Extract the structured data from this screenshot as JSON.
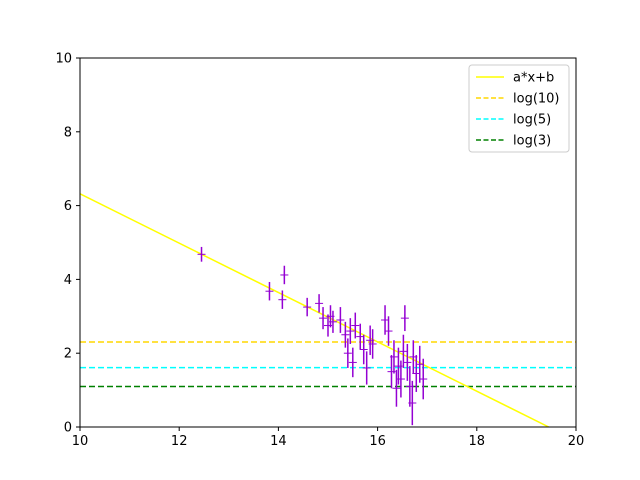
{
  "chart_data": {
    "type": "scatter",
    "xlim": [
      10,
      20
    ],
    "ylim": [
      0,
      10
    ],
    "x_ticks": [
      "10",
      "12",
      "14",
      "16",
      "18",
      "20"
    ],
    "y_ticks": [
      "0",
      "2",
      "4",
      "6",
      "8",
      "10"
    ],
    "grid": false,
    "legend_position": "top-right",
    "fit_line": {
      "name": "a*x+b",
      "color": "#ffff00",
      "points": [
        [
          10,
          6.32
        ],
        [
          19.45,
          0.0
        ]
      ]
    },
    "reference_lines": [
      {
        "name": "log(10)",
        "y": 2.3026,
        "color": "#ffd700",
        "style": "dashed"
      },
      {
        "name": "log(5)",
        "y": 1.6094,
        "color": "#00ffff",
        "style": "dashed"
      },
      {
        "name": "log(3)",
        "y": 1.0986,
        "color": "#008000",
        "style": "dashed"
      }
    ],
    "series": [
      {
        "color": "#9400d3",
        "marker": "+",
        "points": [
          {
            "x": 12.45,
            "y": 4.68,
            "yerr": 0.2
          },
          {
            "x": 13.82,
            "y": 3.68,
            "yerr": 0.25
          },
          {
            "x": 14.08,
            "y": 3.45,
            "yerr": 0.25
          },
          {
            "x": 14.12,
            "y": 4.12,
            "yerr": 0.25
          },
          {
            "x": 14.58,
            "y": 3.25,
            "yerr": 0.25
          },
          {
            "x": 14.82,
            "y": 3.35,
            "yerr": 0.25
          },
          {
            "x": 14.9,
            "y": 2.95,
            "yerr": 0.3
          },
          {
            "x": 15.0,
            "y": 2.75,
            "yerr": 0.3
          },
          {
            "x": 15.05,
            "y": 3.0,
            "yerr": 0.3
          },
          {
            "x": 15.1,
            "y": 2.85,
            "yerr": 0.3
          },
          {
            "x": 15.25,
            "y": 2.9,
            "yerr": 0.35
          },
          {
            "x": 15.35,
            "y": 2.5,
            "yerr": 0.35
          },
          {
            "x": 15.4,
            "y": 2.0,
            "yerr": 0.4
          },
          {
            "x": 15.45,
            "y": 2.6,
            "yerr": 0.35
          },
          {
            "x": 15.5,
            "y": 1.75,
            "yerr": 0.4
          },
          {
            "x": 15.55,
            "y": 2.75,
            "yerr": 0.35
          },
          {
            "x": 15.65,
            "y": 2.45,
            "yerr": 0.35
          },
          {
            "x": 15.72,
            "y": 2.1,
            "yerr": 0.4
          },
          {
            "x": 15.78,
            "y": 1.6,
            "yerr": 0.45
          },
          {
            "x": 15.85,
            "y": 2.35,
            "yerr": 0.4
          },
          {
            "x": 15.9,
            "y": 2.25,
            "yerr": 0.4
          },
          {
            "x": 16.15,
            "y": 2.9,
            "yerr": 0.4
          },
          {
            "x": 16.22,
            "y": 2.6,
            "yerr": 0.4
          },
          {
            "x": 16.28,
            "y": 1.5,
            "yerr": 0.45
          },
          {
            "x": 16.33,
            "y": 1.9,
            "yerr": 0.45
          },
          {
            "x": 16.38,
            "y": 1.05,
            "yerr": 0.5
          },
          {
            "x": 16.42,
            "y": 1.65,
            "yerr": 0.5
          },
          {
            "x": 16.47,
            "y": 1.3,
            "yerr": 0.5
          },
          {
            "x": 16.52,
            "y": 2.05,
            "yerr": 0.45
          },
          {
            "x": 16.55,
            "y": 2.95,
            "yerr": 0.35
          },
          {
            "x": 16.6,
            "y": 1.75,
            "yerr": 0.5
          },
          {
            "x": 16.65,
            "y": 1.1,
            "yerr": 0.55
          },
          {
            "x": 16.7,
            "y": 0.65,
            "yerr": 0.6
          },
          {
            "x": 16.72,
            "y": 1.9,
            "yerr": 0.45
          },
          {
            "x": 16.78,
            "y": 1.45,
            "yerr": 0.5
          },
          {
            "x": 16.85,
            "y": 1.7,
            "yerr": 0.5
          },
          {
            "x": 16.92,
            "y": 1.3,
            "yerr": 0.55
          }
        ]
      }
    ]
  }
}
